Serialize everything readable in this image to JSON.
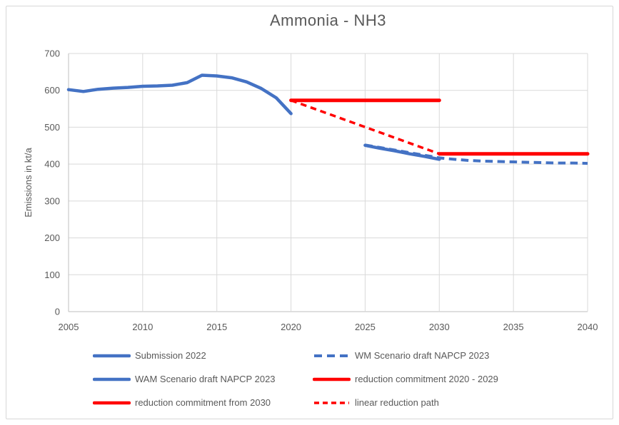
{
  "title": "Ammonia - NH3",
  "colors": {
    "series_blue": "#4472C4",
    "series_red": "#FF0000",
    "text": "#595959",
    "gridline": "#D9D9D9",
    "axis_line": "#BFBFBF",
    "frame_border": "#D7D7D7"
  },
  "chart_data": {
    "type": "line",
    "title": "Ammonia - NH3",
    "xlabel": "",
    "ylabel": "Emissions in kt/a",
    "xlim": [
      2005,
      2040
    ],
    "ylim": [
      0,
      700
    ],
    "x_ticks": [
      "2005",
      "2010",
      "2015",
      "2020",
      "2025",
      "2030",
      "2035",
      "2040"
    ],
    "y_ticks": [
      "0",
      "100",
      "200",
      "300",
      "400",
      "500",
      "600",
      "700"
    ],
    "grid": true,
    "legend_position": "bottom",
    "series": [
      {
        "name": "Submission 2022",
        "key": "submission-2022",
        "color": "#4472C4",
        "style": "solid",
        "width": 4.5,
        "points": [
          [
            2005,
            602
          ],
          [
            2006,
            597
          ],
          [
            2007,
            603
          ],
          [
            2008,
            606
          ],
          [
            2009,
            608
          ],
          [
            2010,
            611
          ],
          [
            2011,
            612
          ],
          [
            2012,
            614
          ],
          [
            2013,
            621
          ],
          [
            2014,
            641
          ],
          [
            2015,
            639
          ],
          [
            2016,
            634
          ],
          [
            2017,
            623
          ],
          [
            2018,
            605
          ],
          [
            2019,
            580
          ],
          [
            2020,
            537
          ]
        ]
      },
      {
        "name": "WM Scenario draft NAPCP 2023",
        "key": "wm-scenario-draft-napcp-2023",
        "color": "#4472C4",
        "style": "dashed",
        "width": 4,
        "points": [
          [
            2025,
            452
          ],
          [
            2026,
            445
          ],
          [
            2027,
            438
          ],
          [
            2028,
            431
          ],
          [
            2029,
            424
          ],
          [
            2030,
            417
          ],
          [
            2031,
            413
          ],
          [
            2032,
            410
          ],
          [
            2033,
            408
          ],
          [
            2034,
            407
          ],
          [
            2035,
            406
          ],
          [
            2036,
            405
          ],
          [
            2037,
            404
          ],
          [
            2038,
            403
          ],
          [
            2039,
            403
          ],
          [
            2040,
            402
          ]
        ]
      },
      {
        "name": "WAM Scenario draft NAPCP 2023",
        "key": "wam-scenario-draft-napcp-2023",
        "color": "#4472C4",
        "style": "solid",
        "width": 4.5,
        "points": [
          [
            2025,
            451
          ],
          [
            2026,
            443
          ],
          [
            2027,
            436
          ],
          [
            2028,
            428
          ],
          [
            2029,
            421
          ],
          [
            2030,
            413
          ]
        ]
      },
      {
        "name": "reduction commitment 2020 - 2029",
        "key": "reduction-commitment-2020-2029",
        "color": "#FF0000",
        "style": "solid",
        "width": 5,
        "points": [
          [
            2020,
            573
          ],
          [
            2030,
            573
          ]
        ]
      },
      {
        "name": "reduction commitment from 2030",
        "key": "reduction-commitment-from-2030",
        "color": "#FF0000",
        "style": "solid",
        "width": 5,
        "points": [
          [
            2030,
            428
          ],
          [
            2040,
            428
          ]
        ]
      },
      {
        "name": "linear reduction path",
        "key": "linear-reduction-path",
        "color": "#FF0000",
        "style": "dashed",
        "width": 3.5,
        "points": [
          [
            2020,
            573
          ],
          [
            2030,
            428
          ]
        ]
      }
    ]
  }
}
